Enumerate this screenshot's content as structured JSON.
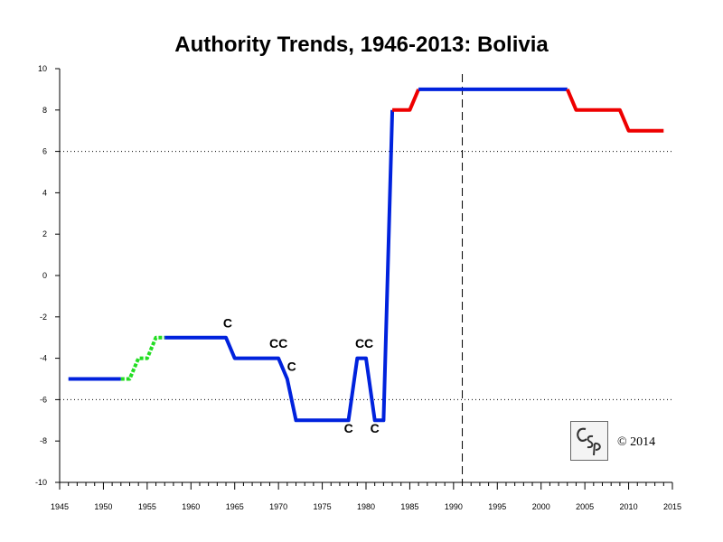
{
  "chart_data": {
    "type": "line",
    "title": "Authority Trends, 1946-2013: Bolivia",
    "xlim": [
      1945,
      2015
    ],
    "ylim": [
      -10,
      10
    ],
    "x_ticks": [
      1945,
      1950,
      1955,
      1960,
      1965,
      1970,
      1975,
      1980,
      1985,
      1990,
      1995,
      2000,
      2005,
      2010,
      2015
    ],
    "y_ticks": [
      -10,
      -8,
      -6,
      -4,
      -2,
      0,
      2,
      4,
      6,
      8,
      10
    ],
    "reference_lines": {
      "horizontal_dotted": [
        6,
        -6
      ],
      "vertical_dashed": [
        1991
      ]
    },
    "series": [
      {
        "color": "#0022dd",
        "style": "solid",
        "points": [
          [
            1946,
            -5
          ],
          [
            1952,
            -5
          ]
        ]
      },
      {
        "color": "#22dd22",
        "style": "dashed",
        "points": [
          [
            1952,
            -5
          ],
          [
            1953,
            -5
          ],
          [
            1954,
            -4
          ],
          [
            1955,
            -4
          ],
          [
            1956,
            -3
          ],
          [
            1957,
            -3
          ]
        ]
      },
      {
        "color": "#0022dd",
        "style": "solid",
        "points": [
          [
            1957,
            -3
          ],
          [
            1964,
            -3
          ],
          [
            1965,
            -4
          ],
          [
            1970,
            -4
          ],
          [
            1971,
            -5
          ],
          [
            1972,
            -7
          ],
          [
            1978,
            -7
          ],
          [
            1979,
            -4
          ],
          [
            1980,
            -4
          ],
          [
            1981,
            -7
          ],
          [
            1982,
            -7
          ],
          [
            1983,
            8
          ]
        ]
      },
      {
        "color": "#ee0000",
        "style": "solid",
        "points": [
          [
            1983,
            8
          ],
          [
            1985,
            8
          ],
          [
            1986,
            9
          ]
        ]
      },
      {
        "color": "#0022dd",
        "style": "solid",
        "points": [
          [
            1986,
            9
          ],
          [
            2003,
            9
          ]
        ]
      },
      {
        "color": "#ee0000",
        "style": "solid",
        "points": [
          [
            2003,
            9
          ],
          [
            2004,
            8
          ],
          [
            2009,
            8
          ],
          [
            2010,
            7
          ],
          [
            2014,
            7
          ]
        ]
      }
    ],
    "annotations": [
      {
        "text": "C",
        "x": 1964.2,
        "y": -2.5
      },
      {
        "text": "CC",
        "x": 1970.0,
        "y": -3.5
      },
      {
        "text": "C",
        "x": 1971.5,
        "y": -4.6
      },
      {
        "text": "CC",
        "x": 1979.8,
        "y": -3.5
      },
      {
        "text": "C",
        "x": 1978.0,
        "y": -7.6
      },
      {
        "text": "C",
        "x": 1981.0,
        "y": -7.6
      }
    ]
  },
  "logo": {
    "text": "CSP"
  },
  "copyright": "© 2014"
}
